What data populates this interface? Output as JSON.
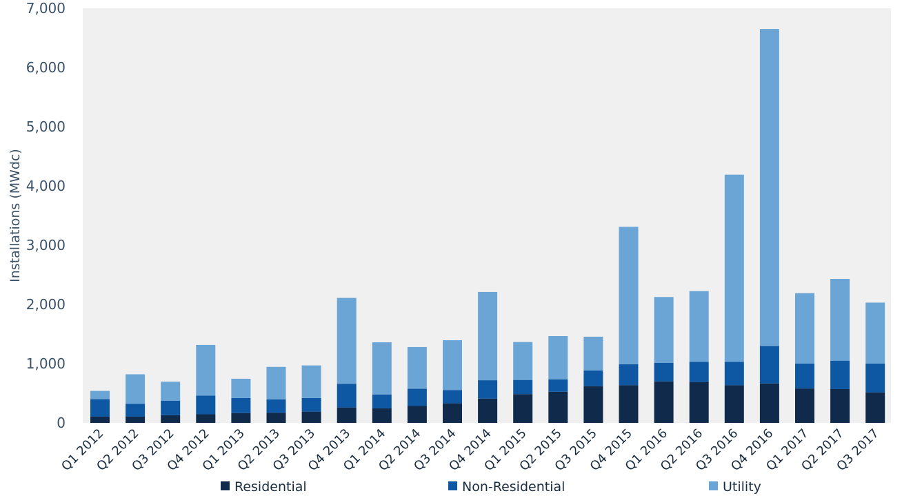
{
  "chart_data": {
    "type": "bar",
    "stacked": true,
    "title": "",
    "xlabel": "",
    "ylabel": "Installations (MWdc)",
    "ylim": [
      0,
      7000
    ],
    "yticks": [
      "0",
      "1,000",
      "2,000",
      "3,000",
      "4,000",
      "5,000",
      "6,000",
      "7,000"
    ],
    "ytick_values": [
      0,
      1000,
      2000,
      3000,
      4000,
      5000,
      6000,
      7000
    ],
    "grid": false,
    "legend": "bottom",
    "categories": [
      "Q1 2012",
      "Q2 2012",
      "Q3 2012",
      "Q4 2012",
      "Q1 2013",
      "Q2 2013",
      "Q3 2013",
      "Q4 2013",
      "Q1 2014",
      "Q2 2014",
      "Q3 2014",
      "Q4 2014",
      "Q1 2015",
      "Q2 2015",
      "Q3 2015",
      "Q4 2015",
      "Q1 2016",
      "Q2 2016",
      "Q3 2016",
      "Q4 2016",
      "Q1 2017",
      "Q2 2017",
      "Q3 2017"
    ],
    "series": [
      {
        "name": "Residential",
        "color": "#0f2a4a",
        "values": [
          105,
          105,
          130,
          145,
          165,
          170,
          190,
          260,
          245,
          285,
          330,
          410,
          485,
          525,
          620,
          635,
          700,
          690,
          635,
          665,
          580,
          570,
          515
        ]
      },
      {
        "name": "Non-Residential",
        "color": "#0e57a3",
        "values": [
          295,
          215,
          245,
          315,
          255,
          225,
          230,
          400,
          235,
          290,
          225,
          310,
          240,
          210,
          265,
          355,
          315,
          340,
          395,
          635,
          420,
          480,
          485
        ]
      },
      {
        "name": "Utility",
        "color": "#6aa5d6",
        "values": [
          140,
          500,
          320,
          855,
          325,
          550,
          550,
          1450,
          880,
          705,
          840,
          1490,
          640,
          730,
          570,
          2320,
          1110,
          1195,
          3160,
          5350,
          1190,
          1380,
          1030
        ]
      }
    ]
  }
}
